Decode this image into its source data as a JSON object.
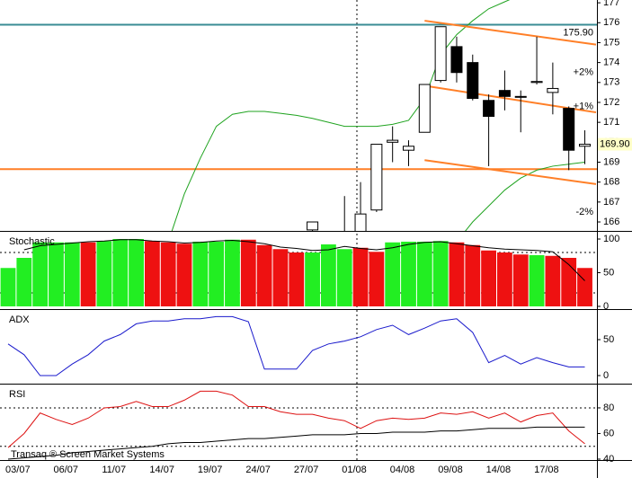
{
  "watermark": "Transaq ® Screen Market Systems",
  "chart_data": [
    {
      "type": "candlestick",
      "ylim": [
        165.55,
        177.14
      ],
      "yticks": [
        166,
        167,
        168,
        169,
        170,
        171,
        172,
        173,
        174,
        175,
        176,
        177
      ],
      "open": [
        null,
        null,
        null,
        null,
        null,
        null,
        null,
        null,
        null,
        null,
        null,
        null,
        null,
        null,
        null,
        null,
        null,
        null,
        null,
        165.6,
        null,
        165.0,
        164.0,
        166.6,
        170.0,
        169.6,
        170.5,
        173.1,
        174.8,
        174.0,
        172.1,
        172.6,
        172.3,
        173.0,
        172.5,
        171.7,
        169.8
      ],
      "high": [
        null,
        null,
        null,
        null,
        null,
        null,
        null,
        null,
        null,
        null,
        null,
        null,
        null,
        null,
        null,
        null,
        null,
        null,
        null,
        166.0,
        null,
        167.3,
        168.0,
        169.9,
        170.8,
        170.1,
        172.9,
        175.8,
        175.3,
        174.4,
        172.4,
        173.6,
        172.6,
        175.3,
        174.0,
        171.8,
        170.6
      ],
      "low": [
        null,
        null,
        null,
        null,
        null,
        null,
        null,
        null,
        null,
        null,
        null,
        null,
        null,
        null,
        null,
        null,
        null,
        null,
        null,
        165.5,
        null,
        164.0,
        163.5,
        166.5,
        169.0,
        168.8,
        170.5,
        173.0,
        173.0,
        172.1,
        168.8,
        171.6,
        170.5,
        172.9,
        171.4,
        168.6,
        168.9
      ],
      "close": [
        null,
        null,
        null,
        null,
        null,
        null,
        null,
        null,
        null,
        null,
        null,
        null,
        null,
        null,
        null,
        null,
        null,
        null,
        null,
        166.0,
        null,
        165.5,
        166.4,
        169.9,
        170.1,
        169.8,
        172.9,
        175.8,
        173.5,
        172.2,
        171.3,
        172.3,
        172.3,
        173.05,
        172.7,
        169.6,
        169.9
      ],
      "up_color": "#ffffff",
      "down_color": "#000000",
      "overlays": [
        {
          "color": "#1fa31f",
          "values": [
            null,
            null,
            null,
            null,
            null,
            null,
            null,
            null,
            null,
            null,
            165.0,
            167.4,
            169.2,
            170.8,
            171.4,
            171.55,
            171.55,
            171.45,
            171.35,
            171.2,
            171.0,
            170.8,
            170.8,
            170.8,
            170.9,
            171.1,
            172.2,
            174.4,
            175.4,
            176.1,
            176.7,
            177.05,
            177.4,
            null,
            null,
            null,
            null
          ]
        },
        {
          "color": "#1fa31f",
          "values": [
            null,
            null,
            null,
            null,
            null,
            null,
            null,
            null,
            null,
            null,
            null,
            null,
            null,
            null,
            null,
            null,
            null,
            null,
            null,
            null,
            null,
            null,
            null,
            null,
            null,
            null,
            null,
            null,
            165.0,
            166.0,
            166.8,
            167.6,
            168.2,
            168.6,
            168.8,
            168.9,
            169.0
          ]
        }
      ],
      "levels": [
        {
          "value": 175.9,
          "label": "175.90",
          "color": "#3a8c94"
        },
        {
          "value": 168.65,
          "color": "#ff7f27"
        }
      ],
      "trend_color": "#ff7f27",
      "trend_lines": [
        {
          "x": [
            26,
            36.7
          ],
          "values": [
            176.1,
            174.9
          ]
        },
        {
          "x": [
            26.3,
            36.7
          ],
          "values": [
            172.8,
            171.5
          ]
        },
        {
          "x": [
            26,
            36.7
          ],
          "values": [
            169.1,
            167.9
          ]
        }
      ],
      "band_labels": [
        {
          "value": 173.5,
          "label": "+2%",
          "color": "#2a9a2a"
        },
        {
          "value": 171.8,
          "label": "+1%",
          "color": "#2a9a2a"
        },
        {
          "value": 166.5,
          "label": "-2%",
          "color": "#e02020"
        }
      ],
      "last_price": {
        "value": 169.9,
        "label": "169.90"
      }
    },
    {
      "type": "bar",
      "title": "Stochastic",
      "ylim": [
        -2.7,
        110.7
      ],
      "yticks": [
        0,
        50,
        100
      ],
      "levels": [
        80,
        20
      ],
      "values": [
        57,
        72,
        95,
        95,
        95,
        95,
        97,
        100,
        100,
        97,
        95,
        93,
        96,
        96,
        99,
        99,
        91,
        85,
        80,
        80,
        92,
        85,
        87,
        81,
        95,
        96,
        96,
        97,
        95,
        91,
        83,
        80,
        77,
        76,
        75,
        72,
        57
      ],
      "colors": [
        "#22ee22",
        "#22ee22",
        "#22ee22",
        "#22ee22",
        "#22ee22",
        "#ee1111",
        "#22ee22",
        "#22ee22",
        "#22ee22",
        "#ee1111",
        "#ee1111",
        "#ee1111",
        "#22ee22",
        "#22ee22",
        "#22ee22",
        "#ee1111",
        "#ee1111",
        "#ee1111",
        "#ee1111",
        "#22ee22",
        "#22ee22",
        "#22ee22",
        "#ee1111",
        "#ee1111",
        "#22ee22",
        "#22ee22",
        "#22ee22",
        "#22ee22",
        "#ee1111",
        "#ee1111",
        "#ee1111",
        "#ee1111",
        "#ee1111",
        "#22ee22",
        "#ee1111",
        "#ee1111",
        "#ee1111"
      ],
      "line": {
        "color": "#000000",
        "values": [
          null,
          84,
          90,
          92,
          94,
          96,
          97,
          99,
          99,
          97,
          96,
          94,
          95,
          97,
          98,
          96,
          93,
          88,
          86,
          83,
          84,
          89,
          86,
          84,
          87,
          92,
          95,
          96,
          93,
          90,
          87,
          85,
          84,
          83,
          81,
          62,
          38
        ]
      }
    },
    {
      "type": "line",
      "title": "ADX",
      "ylim": [
        -11.25,
        91.25
      ],
      "yticks": [
        0,
        50
      ],
      "levels": [],
      "series": [
        {
          "color": "#1a1acc",
          "values": [
            44,
            29,
            0,
            0,
            16,
            29,
            48,
            57,
            72,
            76,
            76,
            79,
            79,
            82,
            82,
            75,
            9,
            9,
            9,
            35,
            44,
            48,
            54,
            64,
            70,
            57,
            66,
            76,
            79,
            60,
            18,
            28,
            16,
            25,
            18,
            12,
            12
          ]
        }
      ]
    },
    {
      "type": "line",
      "title": "RSI",
      "ylim": [
        39.3,
        98.2
      ],
      "yticks": [
        40,
        60,
        80
      ],
      "levels": [
        80,
        50
      ],
      "categories": [
        null,
        "03/07",
        null,
        null,
        "06/07",
        null,
        null,
        "11/07",
        null,
        null,
        "14/07",
        null,
        null,
        "19/07",
        null,
        null,
        "24/07",
        null,
        null,
        "27/07",
        null,
        null,
        "01/08",
        null,
        null,
        "04/08",
        null,
        null,
        "09/08",
        null,
        null,
        "14/08",
        null,
        null,
        "17/08",
        null,
        null
      ],
      "series": [
        {
          "color": "#dd1111",
          "values": [
            49,
            60,
            76,
            71,
            67,
            72,
            80,
            81,
            85,
            81,
            81,
            86,
            93,
            93,
            90,
            81,
            81,
            77,
            75,
            75,
            72,
            70,
            64,
            70,
            72,
            71,
            72,
            76,
            75,
            77,
            72,
            76,
            69,
            74,
            76,
            62,
            52
          ]
        },
        {
          "color": "#000000",
          "values": [
            40,
            41,
            42,
            43,
            45,
            46,
            47,
            48,
            49,
            50,
            52,
            53,
            53,
            54,
            55,
            56,
            56,
            57,
            58,
            59,
            59,
            59,
            60,
            60,
            61,
            61,
            61,
            62,
            62,
            63,
            64,
            64,
            64,
            65,
            65,
            65,
            65
          ]
        }
      ]
    }
  ]
}
